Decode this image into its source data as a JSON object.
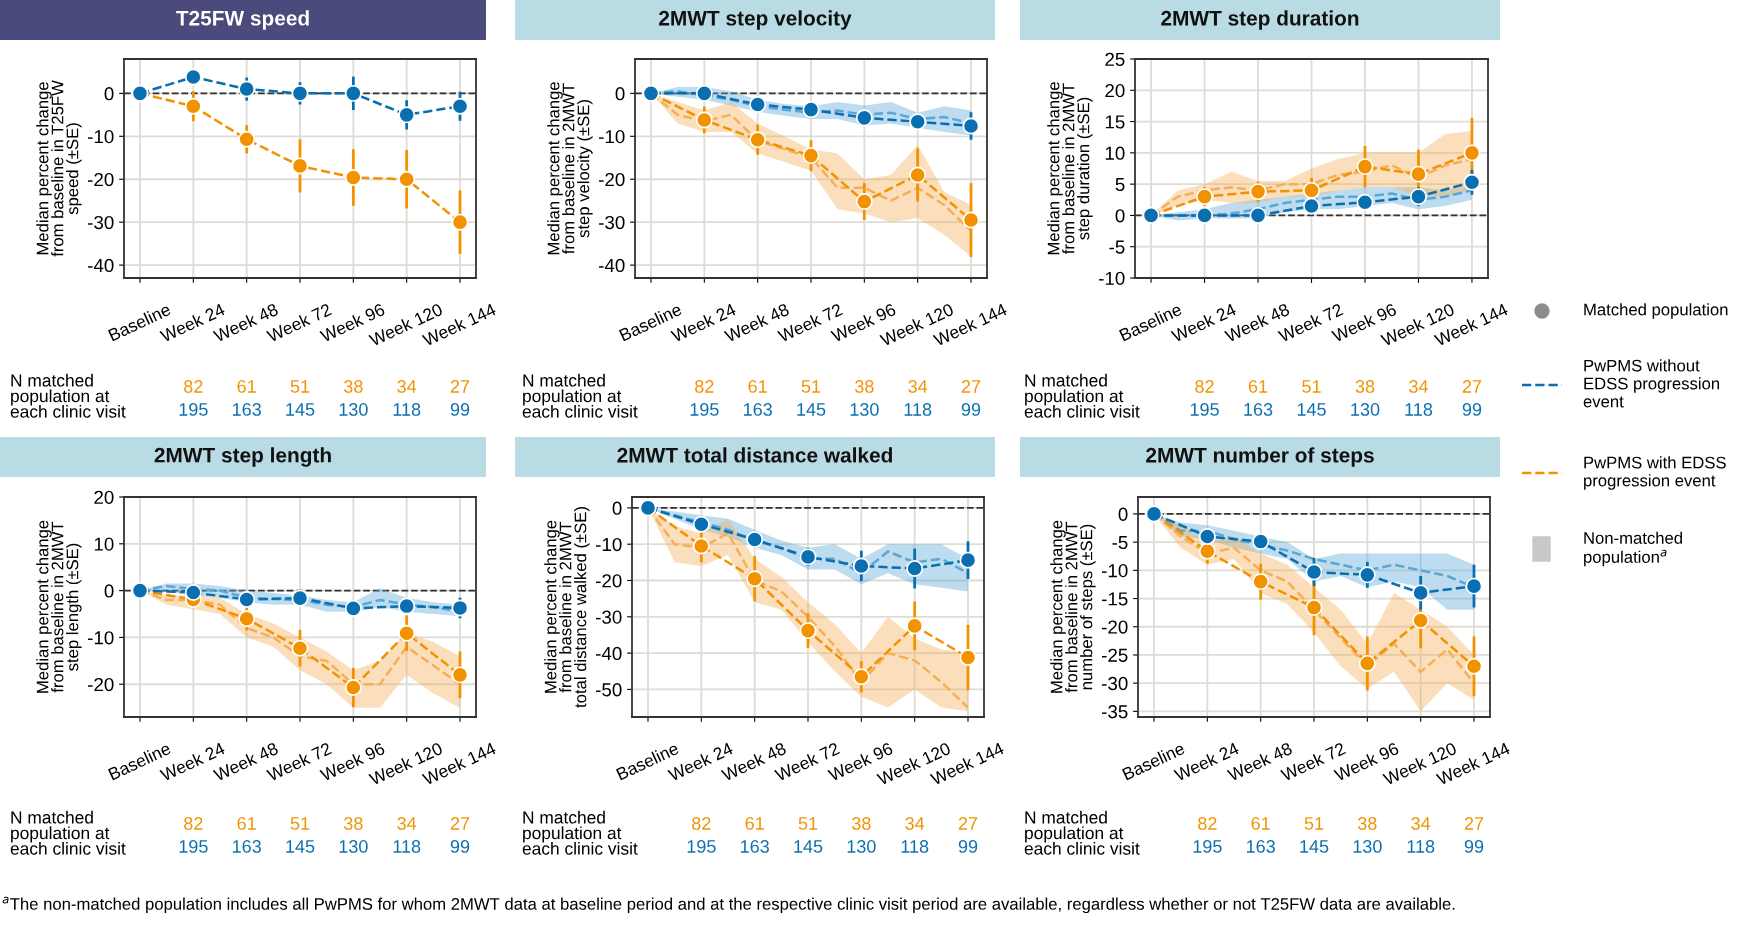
{
  "chart_data": [
    {
      "type": "line",
      "title": "T25FW speed",
      "ylabel": "Median percent change\nfrom baseline in T25FW\nspeed (±SE)",
      "ylim": [
        -43,
        8
      ],
      "categories": [
        "Baseline",
        null,
        "Week 24",
        null,
        "Week 48",
        null,
        "Week 72",
        null,
        "Week 96",
        null,
        "Week 120",
        null,
        "Week 144"
      ],
      "yticks": [
        -40,
        -30,
        -20,
        -10,
        0
      ],
      "grid": true,
      "ref_lines": [
        {
          "axis": "y",
          "value": 0,
          "color": "#333333",
          "line_style": "dashed"
        }
      ],
      "series": [
        {
          "color": "#f39200",
          "marker": "circle",
          "line_style": "dashed",
          "x": [
            "Baseline",
            "Week 24",
            "Week 48",
            "Week 72",
            "Week 96",
            "Week 120",
            "Week 144"
          ],
          "values": [
            0,
            -3,
            -10.7,
            -16.9,
            -19.6,
            -20,
            -30
          ],
          "errors": [
            null,
            3.5,
            3.3,
            6.2,
            6.6,
            6.8,
            7.4
          ]
        },
        {
          "color": "#0a6fb0",
          "marker": "circle",
          "line_style": "dashed",
          "x": [
            "Baseline",
            "Week 24",
            "Week 48",
            "Week 72",
            "Week 96",
            "Week 120",
            "Week 144"
          ],
          "values": [
            0,
            3.8,
            1,
            0,
            0,
            -5,
            -3
          ],
          "errors": [
            null,
            1.8,
            2.7,
            2.6,
            3.9,
            3.4,
            3.4
          ]
        }
      ],
      "annotations": [
        "N matched\npopulation at\neach clinic visit",
        "82",
        "61",
        "51",
        "38",
        "34",
        "27",
        "195",
        "163",
        "145",
        "130",
        "118",
        "99"
      ]
    },
    {
      "type": "line",
      "title": "2MWT step velocity",
      "ylabel": "Median percent change\nfrom baseline in 2MWT\nstep velocity (±SE)",
      "ylim": [
        -43,
        8
      ],
      "categories": [
        "Baseline",
        null,
        "Week 24",
        null,
        "Week 48",
        null,
        "Week 72",
        null,
        "Week 96",
        null,
        "Week 120",
        null,
        "Week 144"
      ],
      "yticks": [
        -40,
        -30,
        -20,
        -10,
        0
      ],
      "grid": true,
      "ref_lines": [
        {
          "axis": "y",
          "value": 0,
          "color": "#333333",
          "line_style": "dashed"
        }
      ],
      "series": [
        {
          "color": "#f39200",
          "marker": "circle",
          "line_style": "dashed",
          "x": [
            "Baseline",
            "Week 24",
            "Week 48",
            "Week 72",
            "Week 96",
            "Week 120",
            "Week 144"
          ],
          "values": [
            0,
            -6.2,
            -10.8,
            -14.5,
            -25.2,
            -19,
            -29.5
          ],
          "errors": [
            null,
            3.1,
            3.5,
            3.6,
            4.3,
            6.2,
            8.6
          ]
        },
        {
          "color": "#0a6fb0",
          "marker": "circle",
          "line_style": "dashed",
          "x": [
            "Baseline",
            "Week 24",
            "Week 48",
            "Week 72",
            "Week 96",
            "Week 120",
            "Week 144"
          ],
          "values": [
            0,
            0,
            -2.6,
            -3.8,
            -5.7,
            -6.6,
            -7.6
          ],
          "errors": [
            null,
            null,
            1.2,
            1.3,
            1.7,
            1.7,
            3.2
          ]
        },
        {
          "color": "#5aa7d6",
          "line_style": "dashed",
          "values": [
            0,
            0.5,
            -0.5,
            -1.5,
            -3,
            -3.8,
            -4.5,
            -4,
            -5,
            -4.5,
            -6,
            -5.5,
            -7
          ],
          "lower": [
            0,
            -0.8,
            -1.5,
            -2.8,
            -4.3,
            -5.2,
            -6,
            -6,
            -7.5,
            -7,
            -8,
            -9,
            -9.8
          ],
          "upper": [
            0,
            1.5,
            1.5,
            0.5,
            -1.5,
            -2.5,
            -3,
            -2,
            -2.8,
            -2,
            -4.5,
            -3,
            -4
          ]
        },
        {
          "color": "#f5b057",
          "line_style": "dashed",
          "values": [
            0,
            -5,
            -6.5,
            -5,
            -11,
            -13,
            -15,
            -22,
            -22,
            -25,
            -22,
            -26,
            -32
          ],
          "lower": [
            0,
            -7,
            -9,
            -9,
            -14,
            -16,
            -18,
            -27,
            -28,
            -30,
            -29,
            -33,
            -38
          ],
          "upper": [
            0,
            -2,
            -4,
            -2,
            -7,
            -10,
            -13,
            -14,
            -20,
            -19,
            -12,
            -23,
            -26
          ]
        }
      ],
      "annotations": [
        "N matched\npopulation at\neach clinic visit",
        "82",
        "61",
        "51",
        "38",
        "34",
        "27",
        "195",
        "163",
        "145",
        "130",
        "118",
        "99"
      ]
    },
    {
      "type": "line",
      "title": "2MWT step duration",
      "ylabel": "Median percent change\nfrom baseline in 2MWT\nstep duration (±SE)",
      "ylim": [
        -10,
        25
      ],
      "categories": [
        "Baseline",
        null,
        "Week 24",
        null,
        "Week 48",
        null,
        "Week 72",
        null,
        "Week 96",
        null,
        "Week 120",
        null,
        "Week 144"
      ],
      "yticks": [
        -10,
        -5,
        0,
        5,
        10,
        15,
        20,
        25
      ],
      "grid": true,
      "ref_lines": [
        {
          "axis": "y",
          "value": 0,
          "color": "#333333",
          "line_style": "dashed"
        }
      ],
      "series": [
        {
          "color": "#f39200",
          "marker": "circle",
          "line_style": "dashed",
          "x": [
            "Baseline",
            "Week 24",
            "Week 48",
            "Week 72",
            "Week 96",
            "Week 120",
            "Week 144"
          ],
          "values": [
            0,
            3,
            3.8,
            4,
            7.8,
            6.6,
            10
          ],
          "errors": [
            null,
            1.5,
            1.6,
            2,
            3.3,
            3.9,
            5.6
          ]
        },
        {
          "color": "#0a6fb0",
          "marker": "circle",
          "line_style": "dashed",
          "x": [
            "Baseline",
            "Week 24",
            "Week 48",
            "Week 72",
            "Week 96",
            "Week 120",
            "Week 144"
          ],
          "values": [
            0,
            0,
            0,
            1.5,
            2.1,
            3,
            5.3
          ],
          "errors": [
            null,
            null,
            null,
            1.2,
            1.2,
            1.5,
            2
          ]
        },
        {
          "color": "#5aa7d6",
          "line_style": "dashed",
          "values": [
            0,
            0,
            0,
            0.3,
            1,
            2,
            2.5,
            3,
            3,
            3.5,
            2.5,
            3,
            4
          ],
          "lower": [
            0,
            -0.8,
            -0.5,
            -0.5,
            -0.5,
            0.5,
            1,
            1,
            1.5,
            2,
            1,
            1.5,
            2.5
          ],
          "upper": [
            0,
            0.5,
            1,
            2,
            2.5,
            3,
            3.5,
            4,
            4.5,
            4.5,
            4.5,
            4,
            5
          ]
        },
        {
          "color": "#f5b057",
          "line_style": "dashed",
          "values": [
            0,
            3,
            4,
            4.5,
            4,
            5,
            5,
            6.5,
            7,
            8,
            6,
            8,
            9
          ],
          "lower": [
            0,
            1.5,
            2.5,
            2,
            2,
            3,
            3,
            4,
            4.5,
            4.5,
            3,
            3,
            4
          ],
          "upper": [
            0,
            4,
            5,
            7,
            5.5,
            5.5,
            7.5,
            9,
            10,
            10,
            10,
            13,
            13.5
          ]
        }
      ],
      "annotations": [
        "N matched\npopulation at\neach clinic visit",
        "82",
        "61",
        "51",
        "38",
        "34",
        "27",
        "195",
        "163",
        "145",
        "130",
        "118",
        "99"
      ]
    },
    {
      "type": "line",
      "title": "2MWT step length",
      "ylabel": "Median percent change\nfrom baseline in 2MWT\nstep length (±SE)",
      "ylim": [
        -27,
        20
      ],
      "categories": [
        "Baseline",
        null,
        "Week 24",
        null,
        "Week 48",
        null,
        "Week 72",
        null,
        "Week 96",
        null,
        "Week 120",
        null,
        "Week 144"
      ],
      "yticks": [
        -20,
        -10,
        0,
        10,
        20
      ],
      "grid": true,
      "ref_lines": [
        {
          "axis": "y",
          "value": 0,
          "color": "#333333",
          "line_style": "dashed"
        }
      ],
      "series": [
        {
          "color": "#f39200",
          "marker": "circle",
          "line_style": "dashed",
          "x": [
            "Baseline",
            "Week 24",
            "Week 48",
            "Week 72",
            "Week 96",
            "Week 120",
            "Week 144"
          ],
          "values": [
            0,
            -1.9,
            -6,
            -12.3,
            -20.7,
            -9.1,
            -18
          ],
          "errors": [
            null,
            null,
            2.5,
            3.9,
            4.2,
            3.8,
            5
          ]
        },
        {
          "color": "#0a6fb0",
          "marker": "circle",
          "line_style": "dashed",
          "x": [
            "Baseline",
            "Week 24",
            "Week 48",
            "Week 72",
            "Week 96",
            "Week 120",
            "Week 144"
          ],
          "values": [
            0,
            -0.4,
            -1.9,
            -1.6,
            -3.8,
            -3.3,
            -3.7
          ],
          "errors": [
            null,
            null,
            1,
            1.2,
            null,
            null,
            2.2
          ]
        },
        {
          "color": "#5aa7d6",
          "line_style": "dashed",
          "values": [
            0,
            1,
            0.3,
            0,
            -1.5,
            -1.8,
            -2,
            -3,
            -3.5,
            -2,
            -3,
            -3.5,
            -4.5
          ],
          "lower": [
            0,
            -0.3,
            -1,
            -1.5,
            -2.5,
            -3,
            -3,
            -4.5,
            -4.5,
            -3.5,
            -4.5,
            -5,
            -5.5
          ],
          "upper": [
            0,
            1.5,
            1.5,
            1,
            0,
            -0.5,
            -1,
            -2,
            -2.5,
            0.5,
            -1.5,
            -2.5,
            -3
          ]
        },
        {
          "color": "#f5b057",
          "line_style": "dashed",
          "values": [
            0,
            -2,
            -2,
            -3,
            -8,
            -10,
            -14,
            -15,
            -20,
            -20,
            -12,
            -16,
            -20
          ],
          "lower": [
            0,
            -3,
            -4,
            -5,
            -10,
            -12,
            -17,
            -20,
            -25,
            -25,
            -18,
            -22,
            -25
          ],
          "upper": [
            0,
            -1,
            -1,
            -1.5,
            -5,
            -7,
            -10,
            -13,
            -17,
            -15,
            -9,
            -11,
            -14
          ]
        }
      ],
      "annotations": [
        "N matched\npopulation at\neach clinic visit",
        "82",
        "61",
        "51",
        "38",
        "34",
        "27",
        "195",
        "163",
        "145",
        "130",
        "118",
        "99"
      ]
    },
    {
      "type": "line",
      "title": "2MWT total distance walked",
      "ylabel": "Median percent change\nfrom baseline in 2MWT\ntotal distance walked (±SE)",
      "ylim": [
        -57.6,
        3
      ],
      "categories": [
        "Baseline",
        null,
        "Week 24",
        null,
        "Week 48",
        null,
        "Week 72",
        null,
        "Week 96",
        null,
        "Week 120",
        null,
        "Week 144"
      ],
      "yticks": [
        -50,
        -40,
        -30,
        -20,
        -10,
        0
      ],
      "grid": true,
      "ref_lines": [
        {
          "axis": "y",
          "value": 0,
          "color": "#333333",
          "line_style": "dashed"
        }
      ],
      "series": [
        {
          "color": "#f39200",
          "marker": "circle",
          "line_style": "dashed",
          "x": [
            "Baseline",
            "Week 24",
            "Week 48",
            "Week 72",
            "Week 96",
            "Week 120",
            "Week 144"
          ],
          "values": [
            0,
            -10.5,
            -19.5,
            -33.8,
            -46.5,
            -32.5,
            -41.2
          ],
          "errors": [
            null,
            4.5,
            6.2,
            4.8,
            4.3,
            6.7,
            9
          ]
        },
        {
          "color": "#0a6fb0",
          "marker": "circle",
          "line_style": "dashed",
          "x": [
            "Baseline",
            "Week 24",
            "Week 48",
            "Week 72",
            "Week 96",
            "Week 120",
            "Week 144"
          ],
          "values": [
            0,
            -4.5,
            -8.7,
            -13.5,
            -16,
            -16.7,
            -14.4
          ],
          "errors": [
            null,
            2,
            2.3,
            2.5,
            4.2,
            5.5,
            5.2
          ]
        },
        {
          "color": "#5aa7d6",
          "line_style": "dashed",
          "values": [
            0,
            -2,
            -4,
            -6,
            -9,
            -11,
            -14,
            -14,
            -18,
            -12,
            -15,
            -14,
            -18
          ],
          "lower": [
            0,
            -3,
            -6,
            -8,
            -11,
            -13,
            -17,
            -17,
            -21,
            -18,
            -21,
            -22,
            -23
          ],
          "upper": [
            0,
            -1,
            -2,
            -3,
            -6,
            -9,
            -11,
            -10,
            -14,
            -10,
            -10,
            -10,
            -14
          ]
        },
        {
          "color": "#f5b057",
          "line_style": "dashed",
          "values": [
            0,
            -10,
            -11,
            -7,
            -20,
            -23,
            -30,
            -38,
            -48,
            -40,
            -42,
            -48,
            -55
          ],
          "lower": [
            0,
            -15,
            -16,
            -13,
            -26,
            -28,
            -37,
            -45,
            -52,
            -55,
            -50,
            -55,
            -56
          ],
          "upper": [
            0,
            -5,
            -7,
            -3,
            -14,
            -19,
            -26,
            -32,
            -40,
            -30,
            -36,
            -39,
            -40
          ]
        }
      ],
      "annotations": [
        "N matched\npopulation at\neach clinic visit",
        "82",
        "61",
        "51",
        "38",
        "34",
        "27",
        "195",
        "163",
        "145",
        "130",
        "118",
        "99"
      ]
    },
    {
      "type": "line",
      "title": "2MWT number of steps",
      "ylabel": "Median percent change\nfrom baseline in 2MWT\nnumber of steps (±SE)",
      "ylim": [
        -36,
        3
      ],
      "categories": [
        "Baseline",
        null,
        "Week 24",
        null,
        "Week 48",
        null,
        "Week 72",
        null,
        "Week 96",
        null,
        "Week 120",
        null,
        "Week 144"
      ],
      "yticks": [
        -35,
        -30,
        -25,
        -20,
        -15,
        -10,
        -5,
        0
      ],
      "grid": true,
      "ref_lines": [
        {
          "axis": "y",
          "value": 0,
          "color": "#333333",
          "line_style": "dashed"
        }
      ],
      "series": [
        {
          "color": "#f39200",
          "marker": "circle",
          "line_style": "dashed",
          "x": [
            "Baseline",
            "Week 24",
            "Week 48",
            "Week 72",
            "Week 96",
            "Week 120",
            "Week 144"
          ],
          "values": [
            0,
            -6.6,
            -12,
            -16.6,
            -26.5,
            -18.9,
            -27
          ],
          "errors": [
            null,
            2.2,
            3.2,
            4.9,
            4.8,
            4.9,
            5.3
          ]
        },
        {
          "color": "#0a6fb0",
          "marker": "circle",
          "line_style": "dashed",
          "x": [
            "Baseline",
            "Week 24",
            "Week 48",
            "Week 72",
            "Week 96",
            "Week 120",
            "Week 144"
          ],
          "values": [
            0,
            -4,
            -4.9,
            -10.3,
            -10.8,
            -14,
            -12.8
          ],
          "errors": [
            null,
            null,
            null,
            2.5,
            2.3,
            3,
            3.8
          ]
        },
        {
          "color": "#5aa7d6",
          "line_style": "dashed",
          "values": [
            0,
            -3,
            -3,
            -4.5,
            -5.5,
            -6.5,
            -8,
            -9,
            -10,
            -9,
            -10,
            -11,
            -13
          ],
          "lower": [
            0,
            -4,
            -4.5,
            -6,
            -7,
            -8,
            -12,
            -11,
            -13,
            -12,
            -13,
            -17,
            -17
          ],
          "upper": [
            0,
            -1.5,
            -2,
            -3,
            -4,
            -5,
            -8,
            -7,
            -7,
            -7,
            -7,
            -7,
            -9
          ]
        },
        {
          "color": "#f5b057",
          "line_style": "dashed",
          "values": [
            0,
            -4,
            -7,
            -6,
            -10,
            -12,
            -17,
            -22,
            -27,
            -23,
            -28,
            -24,
            -30
          ],
          "lower": [
            0,
            -6,
            -9,
            -8,
            -14,
            -16,
            -21,
            -27,
            -31,
            -28,
            -35,
            -30,
            -33
          ],
          "upper": [
            0,
            -2,
            -5,
            -4,
            -7,
            -9,
            -13,
            -17,
            -23,
            -14,
            -17,
            -20,
            -25
          ]
        }
      ],
      "annotations": [
        "N matched\npopulation at\neach clinic visit",
        "82",
        "61",
        "51",
        "38",
        "34",
        "27",
        "195",
        "163",
        "145",
        "130",
        "118",
        "99"
      ]
    },
    {
      "type": "other",
      "colors": [
        "#8c8c8c",
        "#0a6fb0",
        "#f39200",
        "#c8c8c8"
      ],
      "annotations": [
        "Matched population",
        "PwPMS without EDSS progression event",
        "PwPMS with EDSS progression event",
        "Non-matched population$^{a}$",
        "$^{a}$The non-matched population includes all PwPMS for whom 2MWT data at baseline period and at the respective clinic visit period are available, regardless whether or not T25FW data are available."
      ]
    }
  ]
}
